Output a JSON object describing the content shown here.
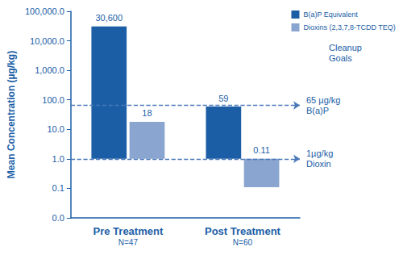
{
  "chart_data": {
    "type": "bar",
    "y_label": "Mean Concentration (µg/kg)",
    "categories": [
      "Pre Treatment\nN=47",
      "Post Treatment\nN=60"
    ],
    "series": [
      {
        "name": "B(a)P Equivalent",
        "color": "#1b5ea6",
        "values": [
          30600,
          59
        ],
        "value_labels": [
          "30,600",
          "59"
        ]
      },
      {
        "name": "Dioxins (2,3,7,8-TCDD TEQ)",
        "color": "#8aa5cf",
        "values": [
          18,
          0.11
        ],
        "value_labels": [
          "18",
          "0.11"
        ]
      }
    ],
    "log": "y",
    "ylim": [
      0.01,
      100000
    ],
    "yticks": [
      {
        "value": 0.01,
        "label": "0.0"
      },
      {
        "value": 0.1,
        "label": "0.1"
      },
      {
        "value": 1,
        "label": "1.0"
      },
      {
        "value": 10,
        "label": "10.0"
      },
      {
        "value": 100,
        "label": "100.0"
      },
      {
        "value": 1000,
        "label": "1,000.0"
      },
      {
        "value": 10000,
        "label": "10,000.0"
      },
      {
        "value": 100000,
        "label": "100,000.0"
      }
    ],
    "reference_lines": [
      {
        "value": 65,
        "label": "65 µg/kg\nB(a)P"
      },
      {
        "value": 1,
        "label": "1µg/kg\nDioxin"
      }
    ],
    "annotations": [
      "Cleanup Goals"
    ],
    "grid": false,
    "data_labels": true,
    "legend": "top-right"
  }
}
